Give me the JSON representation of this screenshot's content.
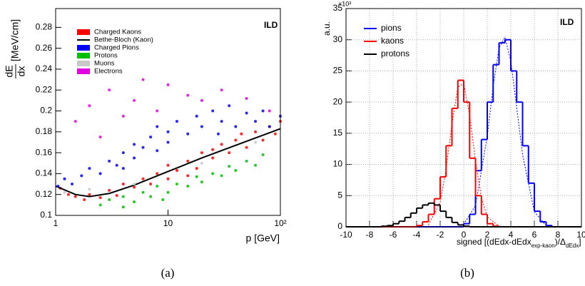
{
  "chart_data": [
    {
      "type": "scatter",
      "xscale": "log",
      "xlim": [
        1,
        100
      ],
      "ylim": [
        0.1,
        0.298
      ],
      "xticks": [
        1,
        10,
        {
          "value": 100,
          "label": "10²"
        }
      ],
      "yticks": [
        0.1,
        0.12,
        0.14,
        0.16,
        0.18,
        0.2,
        0.22,
        0.24,
        0.26,
        0.28
      ],
      "xlabel": "p [GeV]",
      "ylabel_num": "dE",
      "ylabel_den": "dx",
      "ylabel_unit": "[MeV/cm]",
      "annotation": "ILD",
      "caption": "(a)",
      "grid": false,
      "series": [
        {
          "name": "Charged Kaons",
          "color": "#ff0000",
          "x": [
            1.1,
            1.3,
            1.5,
            1.8,
            2,
            2.5,
            3,
            3.5,
            4,
            5,
            6,
            7,
            8,
            10,
            10,
            12,
            15,
            18,
            20,
            25,
            30,
            35,
            40,
            50,
            60,
            70,
            80,
            90,
            100,
            45,
            15,
            25
          ],
          "values": [
            0.126,
            0.12,
            0.118,
            0.115,
            0.12,
            0.117,
            0.124,
            0.119,
            0.13,
            0.127,
            0.135,
            0.13,
            0.14,
            0.135,
            0.148,
            0.143,
            0.152,
            0.145,
            0.16,
            0.155,
            0.168,
            0.16,
            0.172,
            0.165,
            0.18,
            0.172,
            0.185,
            0.178,
            0.19,
            0.178,
            0.138,
            0.163
          ]
        },
        {
          "name": "Bethe-Bloch (Kaon)",
          "color": "#000000",
          "mode": "line",
          "x": [
            1,
            1.5,
            2,
            3,
            5,
            10,
            20,
            50,
            100
          ],
          "values": [
            0.128,
            0.12,
            0.118,
            0.121,
            0.129,
            0.142,
            0.155,
            0.171,
            0.183
          ]
        },
        {
          "name": "Charged Pions",
          "color": "#0000ff",
          "x": [
            1.05,
            1.2,
            1.4,
            1.7,
            2,
            2.5,
            3,
            3.5,
            4,
            5,
            5,
            6,
            7,
            8,
            10,
            10,
            12,
            15,
            18,
            20,
            25,
            30,
            35,
            40,
            50,
            60,
            70,
            80,
            100,
            4,
            8,
            28
          ],
          "values": [
            0.128,
            0.135,
            0.13,
            0.138,
            0.145,
            0.14,
            0.152,
            0.148,
            0.16,
            0.155,
            0.168,
            0.165,
            0.175,
            0.162,
            0.18,
            0.17,
            0.19,
            0.178,
            0.195,
            0.185,
            0.2,
            0.19,
            0.205,
            0.185,
            0.198,
            0.19,
            0.2,
            0.185,
            0.195,
            0.145,
            0.185,
            0.178
          ]
        },
        {
          "name": "Protons",
          "color": "#00c000",
          "x": [
            2.5,
            3,
            4,
            5,
            6,
            7,
            8,
            10,
            12,
            15,
            18,
            20,
            25,
            30,
            35,
            40,
            50,
            60,
            70,
            4,
            9
          ],
          "values": [
            0.11,
            0.115,
            0.118,
            0.113,
            0.122,
            0.118,
            0.128,
            0.122,
            0.13,
            0.128,
            0.137,
            0.132,
            0.14,
            0.138,
            0.147,
            0.143,
            0.152,
            0.148,
            0.158,
            0.108,
            0.115
          ]
        },
        {
          "name": "Muons",
          "color": "#c8c8c8",
          "x": [
            1.2,
            2,
            5,
            20,
            60
          ],
          "values": [
            0.122,
            0.125,
            0.13,
            0.15,
            0.17
          ]
        },
        {
          "name": "Electrons",
          "color": "#e000e0",
          "x": [
            1.5,
            2,
            3,
            4,
            5,
            8,
            10,
            15,
            20,
            30,
            50,
            80,
            2.5,
            6
          ],
          "values": [
            0.19,
            0.205,
            0.22,
            0.195,
            0.21,
            0.2,
            0.225,
            0.215,
            0.21,
            0.22,
            0.212,
            0.2,
            0.175,
            0.23
          ]
        }
      ]
    },
    {
      "type": "histogram",
      "xlim": [
        -10,
        10
      ],
      "ylim": [
        0,
        35
      ],
      "xticks": [
        -10,
        -8,
        -6,
        -4,
        -2,
        0,
        2,
        4,
        6,
        8,
        10
      ],
      "yticks": [
        0,
        5,
        10,
        15,
        20,
        25,
        30,
        35
      ],
      "ylabel": "a.u.",
      "y_exponent": "×10³",
      "xlabel": [
        "signed [(dEdx-dEdx",
        "exp-kaon",
        ")/Δ",
        "dEdx",
        "]"
      ],
      "annotation": "ILD",
      "caption": "(b)",
      "grid": true,
      "bins": [
        -10,
        -9.5,
        -9,
        -8.5,
        -8,
        -7.5,
        -7,
        -6.5,
        -6,
        -5.5,
        -5,
        -4.5,
        -4,
        -3.5,
        -3,
        -2.5,
        -2,
        -1.5,
        -1,
        -0.5,
        0,
        0.5,
        1,
        1.5,
        2,
        2.5,
        3,
        3.5,
        4,
        4.5,
        5,
        5.5,
        6,
        6.5,
        7,
        7.5,
        8,
        8.5,
        9,
        9.5,
        10
      ],
      "series": [
        {
          "name": "pions",
          "color": "#0000ff",
          "values": [
            0,
            0,
            0,
            0,
            0,
            0,
            0,
            0,
            0,
            0,
            0,
            0,
            0,
            0,
            0,
            0,
            0,
            0,
            0,
            0,
            0.5,
            2,
            9,
            14,
            20,
            26,
            29.5,
            30,
            25,
            20,
            13,
            7,
            2.5,
            0.8,
            0.2,
            0,
            0,
            0,
            0,
            0
          ],
          "fit_x": [
            0,
            1,
            2,
            2.5,
            3,
            3.5,
            4,
            5,
            6,
            7
          ],
          "fit_values": [
            0.39,
            3.4,
            14.5,
            22.5,
            28.7,
            30.4,
            26.6,
            11.6,
            2.4,
            0.2
          ]
        },
        {
          "name": "kaons",
          "color": "#ff0000",
          "values": [
            0,
            0,
            0,
            0,
            0,
            0,
            0,
            0,
            0,
            0,
            0,
            0,
            0.2,
            0.8,
            2,
            4.5,
            8,
            13,
            19,
            23.5,
            20,
            11,
            5,
            2,
            0.5,
            0.1,
            0,
            0,
            0,
            0,
            0,
            0,
            0,
            0,
            0,
            0,
            0,
            0,
            0,
            0
          ],
          "fit_x": [
            -3,
            -2,
            -1.5,
            -1,
            -0.5,
            0,
            0.5,
            1,
            1.5,
            2,
            3
          ],
          "fit_values": [
            0.3,
            3.9,
            9.2,
            16.5,
            22.4,
            23,
            17.9,
            10.6,
            4.7,
            1.6,
            0.1
          ]
        },
        {
          "name": "protons",
          "color": "#000000",
          "values": [
            0,
            0,
            0,
            0,
            0,
            0,
            0.1,
            0.2,
            0.5,
            0.9,
            1.5,
            2.2,
            3,
            3.5,
            3.8,
            3.5,
            2.5,
            1.5,
            0.7,
            0.3,
            0.1,
            0,
            0,
            0,
            0,
            0,
            0,
            0,
            0,
            0,
            0,
            0,
            0,
            0,
            0,
            0,
            0,
            0,
            0,
            0
          ]
        }
      ]
    }
  ]
}
